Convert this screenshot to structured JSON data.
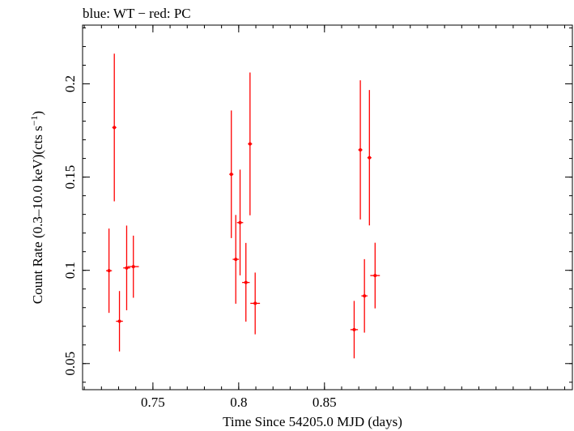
{
  "chart_data": {
    "type": "scatter",
    "title": "blue: WT − red: PC",
    "xlabel": "Time Since 54205.0 MJD (days)",
    "ylabel_main": "Count Rate (0.3–10.0 keV)(cts s",
    "ylabel_sup": "−1",
    "ylabel_close": ")",
    "xlim": [
      0.709,
      0.9945
    ],
    "ylim": [
      0.036,
      0.2315
    ],
    "x_ticks": [
      {
        "value": 0.75,
        "label": "0.75"
      },
      {
        "value": 0.8,
        "label": "0.8"
      },
      {
        "value": 0.85,
        "label": "0.85"
      }
    ],
    "y_ticks": [
      {
        "value": 0.05,
        "label": "0.05"
      },
      {
        "value": 0.1,
        "label": "0.1"
      },
      {
        "value": 0.15,
        "label": "0.15"
      },
      {
        "value": 0.2,
        "label": "0.2"
      }
    ],
    "x_minor_step": 0.01,
    "y_minor_step": 0.01,
    "series": [
      {
        "color": "#ff0000",
        "points": [
          {
            "x": 0.7244,
            "xerr": 0.0017,
            "y": 0.0998,
            "ylo": 0.0772,
            "yhi": 0.1224
          },
          {
            "x": 0.7275,
            "xerr": 0.0012,
            "y": 0.1766,
            "ylo": 0.137,
            "yhi": 0.2162
          },
          {
            "x": 0.7305,
            "xerr": 0.002,
            "y": 0.0727,
            "ylo": 0.0565,
            "yhi": 0.0889
          },
          {
            "x": 0.7347,
            "xerr": 0.002,
            "y": 0.1013,
            "ylo": 0.0786,
            "yhi": 0.124
          },
          {
            "x": 0.7386,
            "xerr": 0.0032,
            "y": 0.102,
            "ylo": 0.0853,
            "yhi": 0.1186
          },
          {
            "x": 0.7957,
            "xerr": 0.0012,
            "y": 0.1515,
            "ylo": 0.1173,
            "yhi": 0.1857
          },
          {
            "x": 0.7983,
            "xerr": 0.0018,
            "y": 0.1059,
            "ylo": 0.0821,
            "yhi": 0.1297
          },
          {
            "x": 0.8008,
            "xerr": 0.0018,
            "y": 0.1256,
            "ylo": 0.0973,
            "yhi": 0.154
          },
          {
            "x": 0.8042,
            "xerr": 0.0022,
            "y": 0.0935,
            "ylo": 0.0725,
            "yhi": 0.1147
          },
          {
            "x": 0.8066,
            "xerr": 0.0012,
            "y": 0.1678,
            "ylo": 0.1295,
            "yhi": 0.2061
          },
          {
            "x": 0.8096,
            "xerr": 0.0028,
            "y": 0.0823,
            "ylo": 0.0657,
            "yhi": 0.0988
          },
          {
            "x": 0.8673,
            "xerr": 0.0022,
            "y": 0.0682,
            "ylo": 0.0528,
            "yhi": 0.0836
          },
          {
            "x": 0.8709,
            "xerr": 0.0012,
            "y": 0.1646,
            "ylo": 0.1273,
            "yhi": 0.2019
          },
          {
            "x": 0.8733,
            "xerr": 0.0018,
            "y": 0.0863,
            "ylo": 0.0666,
            "yhi": 0.106
          },
          {
            "x": 0.8762,
            "xerr": 0.0012,
            "y": 0.1604,
            "ylo": 0.1241,
            "yhi": 0.1967
          },
          {
            "x": 0.8795,
            "xerr": 0.0028,
            "y": 0.0972,
            "ylo": 0.0796,
            "yhi": 0.1148
          }
        ]
      }
    ]
  }
}
